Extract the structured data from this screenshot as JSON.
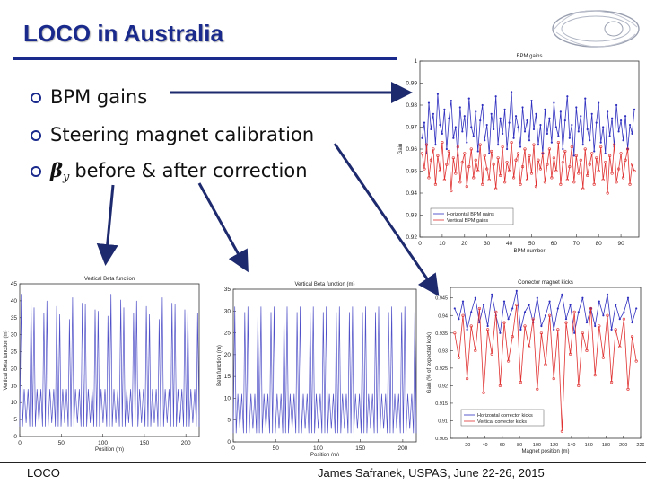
{
  "slide": {
    "title": "LOCO in Australia",
    "bullets": [
      {
        "text": "BPM gains"
      },
      {
        "text": "Steering magnet calibration"
      },
      {
        "greek": "β",
        "sub": "y",
        "text": "before & after correction"
      }
    ],
    "footer_left": "LOCO",
    "footer_right": "James Safranek, USPAS, June 22-26, 2015",
    "accent_color": "#1a2a8c"
  },
  "chart_data": [
    {
      "type": "line",
      "title": "BPM gains",
      "xlabel": "BPM number",
      "ylabel": "Gain",
      "xlim": [
        0,
        98
      ],
      "ylim": [
        0.92,
        1.0
      ],
      "xticks": [
        0,
        10,
        20,
        30,
        40,
        50,
        60,
        70,
        80,
        90
      ],
      "yticks": [
        0.92,
        0.93,
        0.94,
        0.95,
        0.96,
        0.97,
        0.98,
        0.99,
        1
      ],
      "legend_position": "bottom-left",
      "series": [
        {
          "name": "Horizontal BPM gains",
          "color": "#3030c0",
          "values": [
            0.965,
            0.972,
            0.958,
            0.981,
            0.969,
            0.976,
            0.962,
            0.985,
            0.971,
            0.967,
            0.978,
            0.96,
            0.974,
            0.982,
            0.965,
            0.97,
            0.957,
            0.979,
            0.968,
            0.975,
            0.963,
            0.983,
            0.97,
            0.966,
            0.977,
            0.959,
            0.973,
            0.98,
            0.964,
            0.971,
            0.958,
            0.976,
            0.969,
            0.984,
            0.962,
            0.974,
            0.967,
            0.978,
            0.96,
            0.972,
            0.986,
            0.965,
            0.975,
            0.97,
            0.961,
            0.979,
            0.968,
            0.973,
            0.964,
            0.982,
            0.969,
            0.976,
            0.962,
            0.971,
            0.958,
            0.978,
            0.967,
            0.974,
            0.963,
            0.981,
            0.97,
            0.966,
            0.977,
            0.96,
            0.973,
            0.984,
            0.965,
            0.971,
            0.957,
            0.979,
            0.968,
            0.975,
            0.962,
            0.983,
            0.969,
            0.964,
            0.976,
            0.959,
            0.972,
            0.981,
            0.963,
            0.97,
            0.958,
            0.977,
            0.966,
            0.974,
            0.961,
            0.98,
            0.968,
            0.973,
            0.964,
            0.975,
            0.96,
            0.971,
            0.967,
            0.978
          ]
        },
        {
          "name": "Vertical BPM gains",
          "color": "#e03030",
          "values": [
            0.958,
            0.951,
            0.962,
            0.947,
            0.955,
            0.96,
            0.944,
            0.957,
            0.95,
            0.963,
            0.946,
            0.953,
            0.959,
            0.941,
            0.956,
            0.949,
            0.961,
            0.945,
            0.954,
            0.958,
            0.943,
            0.952,
            0.96,
            0.947,
            0.955,
            0.95,
            0.962,
            0.944,
            0.957,
            0.951,
            0.946,
            0.959,
            0.953,
            0.942,
            0.956,
            0.948,
            0.961,
            0.945,
            0.954,
            0.95,
            0.963,
            0.947,
            0.955,
            0.958,
            0.944,
            0.952,
            0.96,
            0.946,
            0.957,
            0.949,
            0.962,
            0.943,
            0.955,
            0.951,
            0.958,
            0.945,
            0.953,
            0.96,
            0.947,
            0.956,
            0.95,
            0.963,
            0.944,
            0.954,
            0.959,
            0.946,
            0.952,
            0.961,
            0.945,
            0.957,
            0.949,
            0.955,
            0.942,
            0.96,
            0.948,
            0.953,
            0.958,
            0.944,
            0.956,
            0.95,
            0.961,
            0.946,
            0.954,
            0.94,
            0.957,
            0.949,
            0.962,
            0.945,
            0.951,
            0.958,
            0.947,
            0.955,
            0.96,
            0.944,
            0.953,
            0.95
          ]
        }
      ]
    },
    {
      "type": "line",
      "title": "Vertical Beta function",
      "xlabel": "Position (m)",
      "ylabel": "Vertical Beta function (m)",
      "xlim": [
        0,
        216
      ],
      "ylim": [
        0,
        45
      ],
      "xticks": [
        0,
        50,
        100,
        150,
        200
      ],
      "yticks": [
        0,
        5,
        10,
        15,
        20,
        25,
        30,
        35,
        40,
        45
      ],
      "series": [
        {
          "name": "",
          "color": "#5050c8",
          "cells": 14,
          "peaks": [
            42,
            38,
            40,
            36,
            41,
            39,
            37,
            42,
            38,
            40,
            36,
            41,
            39,
            38
          ],
          "mid_peak": 14,
          "valley": 3
        }
      ]
    },
    {
      "type": "line",
      "title": "Vertical Beta function (m)",
      "xlabel": "Position (m)",
      "ylabel": "Beta function (m)",
      "xlim": [
        0,
        216
      ],
      "ylim": [
        0,
        35
      ],
      "xticks": [
        0,
        50,
        100,
        150,
        200
      ],
      "yticks": [
        0,
        5,
        10,
        15,
        20,
        25,
        30,
        35
      ],
      "series": [
        {
          "name": "",
          "color": "#5050c8",
          "cells": 14,
          "peaks": [
            31,
            31,
            31,
            31,
            31,
            31,
            31,
            31,
            31,
            31,
            31,
            31,
            31,
            31
          ],
          "mid_peak": 11,
          "valley": 2
        }
      ]
    },
    {
      "type": "line",
      "title": "Corrector magnet kicks",
      "xlabel": "Magnet position (m)",
      "ylabel": "Gain (% of expected kick)",
      "xlim": [
        0,
        220
      ],
      "ylim": [
        0.905,
        0.948
      ],
      "xticks": [
        20,
        40,
        60,
        80,
        100,
        120,
        140,
        160,
        180,
        200,
        220
      ],
      "yticks": [
        0.905,
        0.91,
        0.915,
        0.92,
        0.925,
        0.93,
        0.935,
        0.94,
        0.945
      ],
      "legend_position": "bottom-left",
      "series": [
        {
          "name": "Horizontal corrector kicks",
          "color": "#3030c0",
          "values": [
            0.942,
            0.939,
            0.944,
            0.936,
            0.941,
            0.945,
            0.938,
            0.943,
            0.937,
            0.946,
            0.94,
            0.935,
            0.944,
            0.939,
            0.942,
            0.947,
            0.936,
            0.941,
            0.943,
            0.938,
            0.945,
            0.937,
            0.94,
            0.944,
            0.936,
            0.942,
            0.946,
            0.939,
            0.943,
            0.935,
            0.941,
            0.945,
            0.938,
            0.942,
            0.937,
            0.944,
            0.94,
            0.946,
            0.936,
            0.943,
            0.939,
            0.941,
            0.945,
            0.938,
            0.942
          ]
        },
        {
          "name": "Vertical corrector kicks",
          "color": "#e03030",
          "values": [
            0.935,
            0.928,
            0.94,
            0.922,
            0.937,
            0.93,
            0.942,
            0.918,
            0.936,
            0.929,
            0.941,
            0.92,
            0.938,
            0.927,
            0.934,
            0.943,
            0.921,
            0.937,
            0.931,
            0.939,
            0.919,
            0.935,
            0.926,
            0.94,
            0.922,
            0.936,
            0.907,
            0.938,
            0.929,
            0.941,
            0.92,
            0.935,
            0.93,
            0.942,
            0.923,
            0.937,
            0.928,
            0.94,
            0.921,
            0.936,
            0.931,
            0.939,
            0.919,
            0.934,
            0.927
          ]
        }
      ]
    }
  ]
}
